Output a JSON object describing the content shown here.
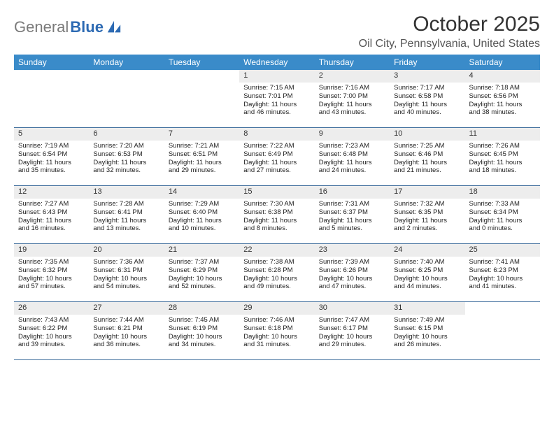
{
  "logo": {
    "text_gray": "General",
    "text_blue": "Blue"
  },
  "title": "October 2025",
  "location": "Oil City, Pennsylvania, United States",
  "colors": {
    "header_bg": "#3a8bc9",
    "header_text": "#ffffff",
    "daynum_bg": "#ededed",
    "row_border": "#3a6a9a",
    "text": "#222222",
    "logo_gray": "#7a7a7a",
    "logo_blue": "#2d6ab3"
  },
  "weekdays": [
    "Sunday",
    "Monday",
    "Tuesday",
    "Wednesday",
    "Thursday",
    "Friday",
    "Saturday"
  ],
  "weeks": [
    [
      {
        "n": "",
        "lines": []
      },
      {
        "n": "",
        "lines": []
      },
      {
        "n": "",
        "lines": []
      },
      {
        "n": "1",
        "lines": [
          "Sunrise: 7:15 AM",
          "Sunset: 7:01 PM",
          "Daylight: 11 hours",
          "and 46 minutes."
        ]
      },
      {
        "n": "2",
        "lines": [
          "Sunrise: 7:16 AM",
          "Sunset: 7:00 PM",
          "Daylight: 11 hours",
          "and 43 minutes."
        ]
      },
      {
        "n": "3",
        "lines": [
          "Sunrise: 7:17 AM",
          "Sunset: 6:58 PM",
          "Daylight: 11 hours",
          "and 40 minutes."
        ]
      },
      {
        "n": "4",
        "lines": [
          "Sunrise: 7:18 AM",
          "Sunset: 6:56 PM",
          "Daylight: 11 hours",
          "and 38 minutes."
        ]
      }
    ],
    [
      {
        "n": "5",
        "lines": [
          "Sunrise: 7:19 AM",
          "Sunset: 6:54 PM",
          "Daylight: 11 hours",
          "and 35 minutes."
        ]
      },
      {
        "n": "6",
        "lines": [
          "Sunrise: 7:20 AM",
          "Sunset: 6:53 PM",
          "Daylight: 11 hours",
          "and 32 minutes."
        ]
      },
      {
        "n": "7",
        "lines": [
          "Sunrise: 7:21 AM",
          "Sunset: 6:51 PM",
          "Daylight: 11 hours",
          "and 29 minutes."
        ]
      },
      {
        "n": "8",
        "lines": [
          "Sunrise: 7:22 AM",
          "Sunset: 6:49 PM",
          "Daylight: 11 hours",
          "and 27 minutes."
        ]
      },
      {
        "n": "9",
        "lines": [
          "Sunrise: 7:23 AM",
          "Sunset: 6:48 PM",
          "Daylight: 11 hours",
          "and 24 minutes."
        ]
      },
      {
        "n": "10",
        "lines": [
          "Sunrise: 7:25 AM",
          "Sunset: 6:46 PM",
          "Daylight: 11 hours",
          "and 21 minutes."
        ]
      },
      {
        "n": "11",
        "lines": [
          "Sunrise: 7:26 AM",
          "Sunset: 6:45 PM",
          "Daylight: 11 hours",
          "and 18 minutes."
        ]
      }
    ],
    [
      {
        "n": "12",
        "lines": [
          "Sunrise: 7:27 AM",
          "Sunset: 6:43 PM",
          "Daylight: 11 hours",
          "and 16 minutes."
        ]
      },
      {
        "n": "13",
        "lines": [
          "Sunrise: 7:28 AM",
          "Sunset: 6:41 PM",
          "Daylight: 11 hours",
          "and 13 minutes."
        ]
      },
      {
        "n": "14",
        "lines": [
          "Sunrise: 7:29 AM",
          "Sunset: 6:40 PM",
          "Daylight: 11 hours",
          "and 10 minutes."
        ]
      },
      {
        "n": "15",
        "lines": [
          "Sunrise: 7:30 AM",
          "Sunset: 6:38 PM",
          "Daylight: 11 hours",
          "and 8 minutes."
        ]
      },
      {
        "n": "16",
        "lines": [
          "Sunrise: 7:31 AM",
          "Sunset: 6:37 PM",
          "Daylight: 11 hours",
          "and 5 minutes."
        ]
      },
      {
        "n": "17",
        "lines": [
          "Sunrise: 7:32 AM",
          "Sunset: 6:35 PM",
          "Daylight: 11 hours",
          "and 2 minutes."
        ]
      },
      {
        "n": "18",
        "lines": [
          "Sunrise: 7:33 AM",
          "Sunset: 6:34 PM",
          "Daylight: 11 hours",
          "and 0 minutes."
        ]
      }
    ],
    [
      {
        "n": "19",
        "lines": [
          "Sunrise: 7:35 AM",
          "Sunset: 6:32 PM",
          "Daylight: 10 hours",
          "and 57 minutes."
        ]
      },
      {
        "n": "20",
        "lines": [
          "Sunrise: 7:36 AM",
          "Sunset: 6:31 PM",
          "Daylight: 10 hours",
          "and 54 minutes."
        ]
      },
      {
        "n": "21",
        "lines": [
          "Sunrise: 7:37 AM",
          "Sunset: 6:29 PM",
          "Daylight: 10 hours",
          "and 52 minutes."
        ]
      },
      {
        "n": "22",
        "lines": [
          "Sunrise: 7:38 AM",
          "Sunset: 6:28 PM",
          "Daylight: 10 hours",
          "and 49 minutes."
        ]
      },
      {
        "n": "23",
        "lines": [
          "Sunrise: 7:39 AM",
          "Sunset: 6:26 PM",
          "Daylight: 10 hours",
          "and 47 minutes."
        ]
      },
      {
        "n": "24",
        "lines": [
          "Sunrise: 7:40 AM",
          "Sunset: 6:25 PM",
          "Daylight: 10 hours",
          "and 44 minutes."
        ]
      },
      {
        "n": "25",
        "lines": [
          "Sunrise: 7:41 AM",
          "Sunset: 6:23 PM",
          "Daylight: 10 hours",
          "and 41 minutes."
        ]
      }
    ],
    [
      {
        "n": "26",
        "lines": [
          "Sunrise: 7:43 AM",
          "Sunset: 6:22 PM",
          "Daylight: 10 hours",
          "and 39 minutes."
        ]
      },
      {
        "n": "27",
        "lines": [
          "Sunrise: 7:44 AM",
          "Sunset: 6:21 PM",
          "Daylight: 10 hours",
          "and 36 minutes."
        ]
      },
      {
        "n": "28",
        "lines": [
          "Sunrise: 7:45 AM",
          "Sunset: 6:19 PM",
          "Daylight: 10 hours",
          "and 34 minutes."
        ]
      },
      {
        "n": "29",
        "lines": [
          "Sunrise: 7:46 AM",
          "Sunset: 6:18 PM",
          "Daylight: 10 hours",
          "and 31 minutes."
        ]
      },
      {
        "n": "30",
        "lines": [
          "Sunrise: 7:47 AM",
          "Sunset: 6:17 PM",
          "Daylight: 10 hours",
          "and 29 minutes."
        ]
      },
      {
        "n": "31",
        "lines": [
          "Sunrise: 7:49 AM",
          "Sunset: 6:15 PM",
          "Daylight: 10 hours",
          "and 26 minutes."
        ]
      },
      {
        "n": "",
        "lines": []
      }
    ]
  ]
}
